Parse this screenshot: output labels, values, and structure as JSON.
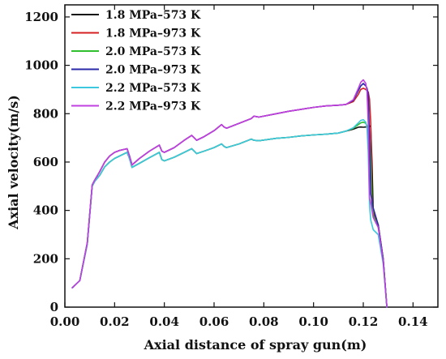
{
  "chart_data": {
    "type": "line",
    "title": "",
    "xlabel": "Axial distance of spray gun(m)",
    "ylabel": "Axial velocity(m/s)",
    "xlim": [
      0.0,
      0.15
    ],
    "ylim": [
      0,
      1250
    ],
    "xticks": [
      "0.00",
      "0.02",
      "0.04",
      "0.06",
      "0.08",
      "0.10",
      "0.12",
      "0.14"
    ],
    "yticks": [
      "0",
      "200",
      "400",
      "600",
      "800",
      "1000",
      "1200"
    ],
    "grid": false,
    "legend_position": "top-left",
    "series": [
      {
        "name": "1.8 MPa–573 K",
        "color": "#111111",
        "x": [
          0.003,
          0.006,
          0.009,
          0.011,
          0.012,
          0.014,
          0.016,
          0.018,
          0.02,
          0.022,
          0.025,
          0.026,
          0.027,
          0.03,
          0.034,
          0.038,
          0.039,
          0.04,
          0.044,
          0.048,
          0.051,
          0.052,
          0.053,
          0.056,
          0.06,
          0.063,
          0.064,
          0.065,
          0.07,
          0.075,
          0.076,
          0.078,
          0.085,
          0.09,
          0.095,
          0.1,
          0.105,
          0.11,
          0.113,
          0.116,
          0.118,
          0.119,
          0.12,
          0.121,
          0.1215,
          0.122,
          0.1225,
          0.123,
          0.1235,
          0.124,
          0.126,
          0.128,
          0.1295
        ],
        "y": [
          80,
          110,
          260,
          500,
          520,
          545,
          580,
          600,
          615,
          625,
          640,
          615,
          578,
          595,
          618,
          640,
          610,
          605,
          620,
          640,
          655,
          645,
          635,
          645,
          660,
          675,
          665,
          660,
          675,
          695,
          690,
          688,
          698,
          702,
          708,
          712,
          715,
          720,
          728,
          736,
          744,
          745,
          744,
          745,
          745,
          746,
          750,
          745,
          600,
          390,
          340,
          200,
          0
        ]
      },
      {
        "name": "1.8 MPa–973 K",
        "color": "#d42020",
        "x": [
          0.003,
          0.006,
          0.009,
          0.011,
          0.012,
          0.014,
          0.016,
          0.018,
          0.02,
          0.022,
          0.025,
          0.026,
          0.027,
          0.03,
          0.034,
          0.038,
          0.039,
          0.04,
          0.044,
          0.048,
          0.051,
          0.052,
          0.053,
          0.056,
          0.06,
          0.063,
          0.064,
          0.065,
          0.07,
          0.075,
          0.076,
          0.078,
          0.085,
          0.09,
          0.095,
          0.1,
          0.105,
          0.11,
          0.113,
          0.116,
          0.118,
          0.119,
          0.12,
          0.121,
          0.1215,
          0.122,
          0.1225,
          0.123,
          0.1235,
          0.124,
          0.126,
          0.128,
          0.1295
        ],
        "y": [
          80,
          110,
          265,
          505,
          525,
          560,
          600,
          625,
          640,
          648,
          655,
          625,
          588,
          615,
          645,
          670,
          645,
          640,
          660,
          690,
          710,
          700,
          690,
          705,
          730,
          755,
          745,
          740,
          760,
          780,
          790,
          786,
          800,
          810,
          818,
          826,
          832,
          835,
          838,
          850,
          880,
          900,
          905,
          900,
          895,
          890,
          860,
          760,
          450,
          400,
          340,
          200,
          0
        ]
      },
      {
        "name": "2.0 MPa–573 K",
        "color": "#2fbf2f",
        "x": [
          0.003,
          0.006,
          0.009,
          0.011,
          0.012,
          0.014,
          0.016,
          0.018,
          0.02,
          0.022,
          0.025,
          0.026,
          0.027,
          0.03,
          0.034,
          0.038,
          0.039,
          0.04,
          0.044,
          0.048,
          0.051,
          0.052,
          0.053,
          0.056,
          0.06,
          0.063,
          0.064,
          0.065,
          0.07,
          0.075,
          0.076,
          0.078,
          0.085,
          0.09,
          0.095,
          0.1,
          0.105,
          0.11,
          0.113,
          0.116,
          0.118,
          0.119,
          0.12,
          0.121,
          0.1215,
          0.122,
          0.1225,
          0.123,
          0.1235,
          0.124,
          0.126,
          0.128,
          0.1295
        ],
        "y": [
          80,
          110,
          260,
          500,
          520,
          545,
          580,
          600,
          615,
          625,
          640,
          615,
          578,
          595,
          618,
          640,
          610,
          605,
          620,
          640,
          655,
          645,
          635,
          645,
          660,
          675,
          665,
          660,
          675,
          695,
          690,
          688,
          698,
          702,
          708,
          712,
          715,
          720,
          728,
          740,
          755,
          762,
          765,
          760,
          750,
          742,
          700,
          600,
          420,
          380,
          330,
          200,
          0
        ]
      },
      {
        "name": "2.0 MPa–973 K",
        "color": "#2a2aa8",
        "x": [
          0.003,
          0.006,
          0.009,
          0.011,
          0.012,
          0.014,
          0.016,
          0.018,
          0.02,
          0.022,
          0.025,
          0.026,
          0.027,
          0.03,
          0.034,
          0.038,
          0.039,
          0.04,
          0.044,
          0.048,
          0.051,
          0.052,
          0.053,
          0.056,
          0.06,
          0.063,
          0.064,
          0.065,
          0.07,
          0.075,
          0.076,
          0.078,
          0.085,
          0.09,
          0.095,
          0.1,
          0.105,
          0.11,
          0.113,
          0.116,
          0.118,
          0.119,
          0.12,
          0.121,
          0.1215,
          0.122,
          0.1225,
          0.123,
          0.1235,
          0.124,
          0.126,
          0.128,
          0.1295
        ],
        "y": [
          80,
          110,
          265,
          505,
          525,
          560,
          600,
          625,
          640,
          648,
          655,
          625,
          588,
          615,
          645,
          670,
          645,
          640,
          660,
          690,
          710,
          700,
          690,
          705,
          730,
          755,
          745,
          740,
          760,
          780,
          790,
          786,
          800,
          810,
          818,
          826,
          832,
          835,
          838,
          855,
          895,
          915,
          925,
          915,
          905,
          880,
          700,
          470,
          440,
          410,
          340,
          200,
          0
        ]
      },
      {
        "name": "2.2 MPa–573 K",
        "color": "#3ec8e0",
        "x": [
          0.003,
          0.006,
          0.009,
          0.011,
          0.012,
          0.014,
          0.016,
          0.018,
          0.02,
          0.022,
          0.025,
          0.026,
          0.027,
          0.03,
          0.034,
          0.038,
          0.039,
          0.04,
          0.044,
          0.048,
          0.051,
          0.052,
          0.053,
          0.056,
          0.06,
          0.063,
          0.064,
          0.065,
          0.07,
          0.075,
          0.076,
          0.078,
          0.085,
          0.09,
          0.095,
          0.1,
          0.105,
          0.11,
          0.113,
          0.116,
          0.118,
          0.119,
          0.12,
          0.121,
          0.1215,
          0.122,
          0.1225,
          0.123,
          0.1235,
          0.124,
          0.126,
          0.128,
          0.1295
        ],
        "y": [
          80,
          110,
          260,
          500,
          520,
          545,
          580,
          600,
          615,
          625,
          640,
          615,
          578,
          595,
          618,
          640,
          610,
          605,
          620,
          640,
          655,
          645,
          635,
          645,
          660,
          675,
          665,
          660,
          675,
          695,
          690,
          688,
          698,
          702,
          708,
          712,
          715,
          720,
          728,
          742,
          762,
          772,
          775,
          765,
          740,
          640,
          420,
          360,
          340,
          320,
          300,
          180,
          0
        ]
      },
      {
        "name": "2.2 MPa–973 K",
        "color": "#c040e0",
        "x": [
          0.003,
          0.006,
          0.009,
          0.011,
          0.012,
          0.014,
          0.016,
          0.018,
          0.02,
          0.022,
          0.025,
          0.026,
          0.027,
          0.03,
          0.034,
          0.038,
          0.039,
          0.04,
          0.044,
          0.048,
          0.051,
          0.052,
          0.053,
          0.056,
          0.06,
          0.063,
          0.064,
          0.065,
          0.07,
          0.075,
          0.076,
          0.078,
          0.085,
          0.09,
          0.095,
          0.1,
          0.105,
          0.11,
          0.113,
          0.116,
          0.118,
          0.119,
          0.12,
          0.121,
          0.1215,
          0.122,
          0.1225,
          0.123,
          0.1235,
          0.124,
          0.126,
          0.128,
          0.1295
        ],
        "y": [
          80,
          110,
          265,
          505,
          525,
          560,
          600,
          625,
          640,
          648,
          655,
          625,
          588,
          615,
          645,
          670,
          645,
          640,
          660,
          690,
          710,
          700,
          690,
          705,
          730,
          755,
          745,
          740,
          760,
          780,
          790,
          786,
          800,
          810,
          818,
          826,
          832,
          835,
          838,
          858,
          905,
          930,
          940,
          925,
          890,
          760,
          450,
          430,
          400,
          370,
          330,
          190,
          0
        ]
      }
    ]
  }
}
